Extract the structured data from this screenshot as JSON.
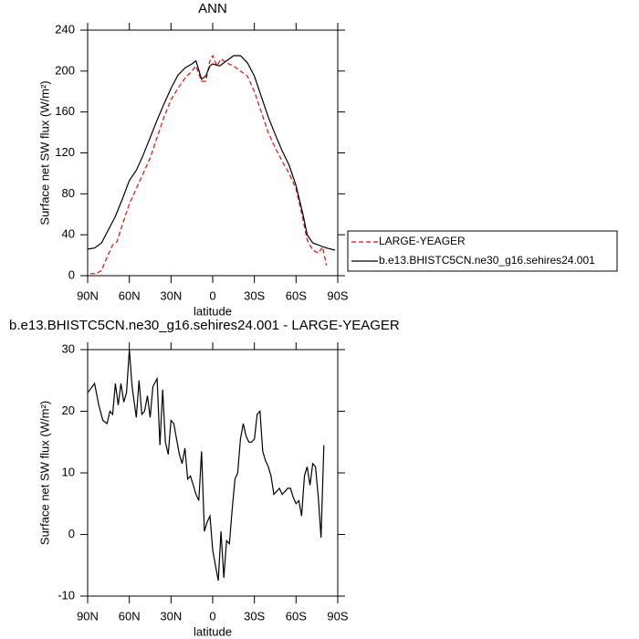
{
  "chart_data": [
    {
      "type": "line",
      "title": "ANN",
      "xlabel": "latitude",
      "ylabel": "Surface net SW flux (W/m²)",
      "xlim": [
        90,
        -90
      ],
      "ylim": [
        0,
        240
      ],
      "xticks": [
        {
          "value": 90,
          "label": "90N"
        },
        {
          "value": 60,
          "label": "60N"
        },
        {
          "value": 30,
          "label": "30N"
        },
        0,
        {
          "value": -30,
          "label": "30S"
        },
        {
          "value": -60,
          "label": "60S"
        },
        {
          "value": -90,
          "label": "90S"
        }
      ],
      "yticks": [
        0,
        40,
        80,
        120,
        160,
        200,
        240
      ],
      "legend": "outside-right",
      "series": [
        {
          "name": "LARGE-YEAGER",
          "color": "#ff0000",
          "line_style": "dashed",
          "x": [
            88,
            84,
            80,
            76,
            72,
            69,
            65,
            60,
            55,
            50,
            45,
            40,
            35,
            30,
            25,
            20,
            15,
            12,
            8,
            5,
            2,
            0,
            -3,
            -6,
            -10,
            -15,
            -20,
            -25,
            -30,
            -35,
            -40,
            -45,
            -50,
            -55,
            -60,
            -65,
            -68,
            -72,
            -76,
            -79,
            -82
          ],
          "values": [
            2,
            2,
            5,
            18,
            30,
            33,
            50,
            70,
            85,
            100,
            115,
            135,
            155,
            172,
            183,
            193,
            200,
            205,
            190,
            190,
            210,
            215,
            205,
            212,
            208,
            205,
            200,
            195,
            180,
            160,
            140,
            125,
            112,
            100,
            85,
            55,
            35,
            25,
            22,
            28,
            10
          ]
        },
        {
          "name": "b.e13.BHISTC5CN.ne30_g16.sehires24.001",
          "color": "#000000",
          "line_style": "solid",
          "x": [
            90,
            85,
            80,
            75,
            70,
            65,
            60,
            55,
            50,
            45,
            40,
            35,
            30,
            25,
            20,
            15,
            12,
            8,
            5,
            2,
            0,
            -5,
            -10,
            -15,
            -20,
            -25,
            -30,
            -35,
            -40,
            -45,
            -50,
            -55,
            -60,
            -65,
            -68,
            -72,
            -78,
            -82,
            -88
          ],
          "values": [
            26,
            27,
            32,
            45,
            58,
            75,
            93,
            103,
            118,
            135,
            152,
            168,
            183,
            196,
            203,
            207,
            210,
            192,
            195,
            205,
            207,
            205,
            210,
            215,
            215,
            208,
            195,
            175,
            155,
            138,
            122,
            108,
            88,
            60,
            40,
            32,
            29,
            27,
            25
          ]
        }
      ]
    },
    {
      "type": "line",
      "title": "b.e13.BHISTC5CN.ne30_g16.sehires24.001 - LARGE-YEAGER",
      "xlabel": "latitude",
      "ylabel": "Surface net SW flux (W/m²)",
      "xlim": [
        90,
        -90
      ],
      "ylim": [
        -10,
        30
      ],
      "xticks": [
        {
          "value": 90,
          "label": "90N"
        },
        {
          "value": 60,
          "label": "60N"
        },
        {
          "value": 30,
          "label": "30N"
        },
        0,
        {
          "value": -30,
          "label": "30S"
        },
        {
          "value": -60,
          "label": "60S"
        },
        {
          "value": -90,
          "label": "90S"
        }
      ],
      "yticks": [
        -10,
        0,
        10,
        20,
        30
      ],
      "series": [
        {
          "color": "#000000",
          "line_style": "solid",
          "x": [
            90,
            85,
            82,
            79,
            76,
            74,
            72,
            70,
            68,
            66,
            64,
            62,
            60,
            58,
            55,
            53,
            51,
            49,
            47,
            45,
            43,
            40,
            38,
            36,
            34,
            32,
            30,
            28,
            26,
            24,
            22,
            20,
            18,
            16,
            14,
            12,
            10,
            8,
            6,
            4,
            2,
            0,
            -2,
            -4,
            -6,
            -8,
            -10,
            -12,
            -14,
            -16,
            -18,
            -20,
            -22,
            -24,
            -26,
            -28,
            -30,
            -32,
            -34,
            -36,
            -38,
            -40,
            -42,
            -44,
            -46,
            -48,
            -50,
            -52,
            -54,
            -56,
            -58,
            -60,
            -62,
            -64,
            -66,
            -68,
            -70,
            -72,
            -74,
            -76,
            -78,
            -80
          ],
          "values": [
            23,
            24.5,
            21,
            18.5,
            18,
            20,
            19.5,
            24.5,
            21,
            24.5,
            21.5,
            23,
            30,
            24,
            19,
            25,
            19.5,
            20,
            22.5,
            19,
            24,
            25.3,
            14.5,
            23.5,
            15,
            13,
            18.5,
            18,
            15.5,
            13,
            11.5,
            14,
            9,
            9.5,
            8,
            6.5,
            5.5,
            13.5,
            0.5,
            2,
            3,
            -2.5,
            -5,
            -7.5,
            0.5,
            -7,
            -1,
            -1.5,
            4,
            9,
            10,
            15.5,
            18,
            16,
            15,
            15,
            15.5,
            19.5,
            20,
            13.5,
            12,
            11,
            9.5,
            6.5,
            7,
            7.5,
            6.5,
            7,
            7.5,
            7.5,
            6,
            5,
            5.5,
            3,
            9.5,
            11,
            8,
            11.5,
            11,
            6,
            -0.5,
            14.5
          ]
        }
      ]
    }
  ]
}
